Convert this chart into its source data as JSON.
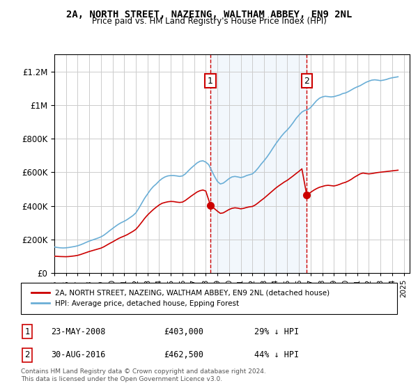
{
  "title": "2A, NORTH STREET, NAZEING, WALTHAM ABBEY, EN9 2NL",
  "subtitle": "Price paid vs. HM Land Registry's House Price Index (HPI)",
  "ylabel_ticks": [
    "£0",
    "£200K",
    "£400K",
    "£600K",
    "£800K",
    "£1M",
    "£1.2M"
  ],
  "ylim": [
    0,
    1300000
  ],
  "yticks": [
    0,
    200000,
    400000,
    600000,
    800000,
    1000000,
    1200000
  ],
  "xlim_start": 1995.0,
  "xlim_end": 2025.5,
  "background_color": "#ffffff",
  "plot_bg_color": "#ffffff",
  "grid_color": "#cccccc",
  "hpi_color": "#6aaed6",
  "price_color": "#cc0000",
  "point1_date": 2008.4,
  "point1_price": 403000,
  "point2_date": 2016.67,
  "point2_price": 462500,
  "annotation1_label": "1",
  "annotation2_label": "2",
  "legend_line1": "2A, NORTH STREET, NAZEING, WALTHAM ABBEY, EN9 2NL (detached house)",
  "legend_line2": "HPI: Average price, detached house, Epping Forest",
  "table_row1": [
    "1",
    "23-MAY-2008",
    "£403,000",
    "29% ↓ HPI"
  ],
  "table_row2": [
    "2",
    "30-AUG-2016",
    "£462,500",
    "44% ↓ HPI"
  ],
  "footnote": "Contains HM Land Registry data © Crown copyright and database right 2024.\nThis data is licensed under the Open Government Licence v3.0.",
  "hpi_data": {
    "years": [
      1995.0,
      1995.25,
      1995.5,
      1995.75,
      1996.0,
      1996.25,
      1996.5,
      1996.75,
      1997.0,
      1997.25,
      1997.5,
      1997.75,
      1998.0,
      1998.25,
      1998.5,
      1998.75,
      1999.0,
      1999.25,
      1999.5,
      1999.75,
      2000.0,
      2000.25,
      2000.5,
      2000.75,
      2001.0,
      2001.25,
      2001.5,
      2001.75,
      2002.0,
      2002.25,
      2002.5,
      2002.75,
      2003.0,
      2003.25,
      2003.5,
      2003.75,
      2004.0,
      2004.25,
      2004.5,
      2004.75,
      2005.0,
      2005.25,
      2005.5,
      2005.75,
      2006.0,
      2006.25,
      2006.5,
      2006.75,
      2007.0,
      2007.25,
      2007.5,
      2007.75,
      2008.0,
      2008.25,
      2008.5,
      2008.75,
      2009.0,
      2009.25,
      2009.5,
      2009.75,
      2010.0,
      2010.25,
      2010.5,
      2010.75,
      2011.0,
      2011.25,
      2011.5,
      2011.75,
      2012.0,
      2012.25,
      2012.5,
      2012.75,
      2013.0,
      2013.25,
      2013.5,
      2013.75,
      2014.0,
      2014.25,
      2014.5,
      2014.75,
      2015.0,
      2015.25,
      2015.5,
      2015.75,
      2016.0,
      2016.25,
      2016.5,
      2016.75,
      2017.0,
      2017.25,
      2017.5,
      2017.75,
      2018.0,
      2018.25,
      2018.5,
      2018.75,
      2019.0,
      2019.25,
      2019.5,
      2019.75,
      2020.0,
      2020.25,
      2020.5,
      2020.75,
      2021.0,
      2021.25,
      2021.5,
      2021.75,
      2022.0,
      2022.25,
      2022.5,
      2022.75,
      2023.0,
      2023.25,
      2023.5,
      2023.75,
      2024.0,
      2024.25,
      2024.5
    ],
    "values": [
      155000,
      152000,
      150000,
      149000,
      150000,
      152000,
      155000,
      158000,
      162000,
      168000,
      175000,
      183000,
      190000,
      196000,
      202000,
      208000,
      215000,
      225000,
      238000,
      252000,
      265000,
      278000,
      290000,
      300000,
      308000,
      318000,
      330000,
      342000,
      358000,
      385000,
      415000,
      445000,
      470000,
      495000,
      515000,
      530000,
      548000,
      562000,
      572000,
      578000,
      580000,
      580000,
      578000,
      575000,
      578000,
      590000,
      608000,
      625000,
      640000,
      655000,
      665000,
      668000,
      660000,
      645000,
      610000,
      575000,
      545000,
      530000,
      535000,
      548000,
      562000,
      572000,
      575000,
      572000,
      568000,
      572000,
      580000,
      585000,
      590000,
      605000,
      625000,
      648000,
      668000,
      690000,
      715000,
      742000,
      768000,
      792000,
      815000,
      835000,
      852000,
      872000,
      895000,
      920000,
      940000,
      958000,
      968000,
      972000,
      985000,
      1005000,
      1025000,
      1040000,
      1048000,
      1052000,
      1050000,
      1048000,
      1050000,
      1055000,
      1060000,
      1068000,
      1072000,
      1080000,
      1090000,
      1100000,
      1108000,
      1115000,
      1125000,
      1135000,
      1142000,
      1148000,
      1150000,
      1148000,
      1145000,
      1148000,
      1152000,
      1158000,
      1162000,
      1165000,
      1168000
    ]
  },
  "price_data": {
    "years": [
      1995.0,
      1995.25,
      1995.5,
      1995.75,
      1996.0,
      1996.25,
      1996.5,
      1996.75,
      1997.0,
      1997.25,
      1997.5,
      1997.75,
      1998.0,
      1998.25,
      1998.5,
      1998.75,
      1999.0,
      1999.25,
      1999.5,
      1999.75,
      2000.0,
      2000.25,
      2000.5,
      2000.75,
      2001.0,
      2001.25,
      2001.5,
      2001.75,
      2002.0,
      2002.25,
      2002.5,
      2002.75,
      2003.0,
      2003.25,
      2003.5,
      2003.75,
      2004.0,
      2004.25,
      2004.5,
      2004.75,
      2005.0,
      2005.25,
      2005.5,
      2005.75,
      2006.0,
      2006.25,
      2006.5,
      2006.75,
      2007.0,
      2007.25,
      2007.5,
      2007.75,
      2008.0,
      2008.4,
      2009.0,
      2009.25,
      2009.5,
      2009.75,
      2010.0,
      2010.25,
      2010.5,
      2010.75,
      2011.0,
      2011.25,
      2011.5,
      2011.75,
      2012.0,
      2012.25,
      2012.5,
      2012.75,
      2013.0,
      2013.25,
      2013.5,
      2013.75,
      2014.0,
      2014.25,
      2014.5,
      2014.75,
      2015.0,
      2015.25,
      2015.5,
      2015.75,
      2016.0,
      2016.25,
      2016.67,
      2017.0,
      2017.25,
      2017.5,
      2017.75,
      2018.0,
      2018.25,
      2018.5,
      2018.75,
      2019.0,
      2019.25,
      2019.5,
      2019.75,
      2020.0,
      2020.25,
      2020.5,
      2020.75,
      2021.0,
      2021.25,
      2021.5,
      2021.75,
      2022.0,
      2022.25,
      2022.5,
      2022.75,
      2023.0,
      2023.25,
      2023.5,
      2023.75,
      2024.0,
      2024.25,
      2024.5
    ],
    "values": [
      100000,
      99000,
      98000,
      97500,
      97000,
      98000,
      100000,
      102000,
      105000,
      110000,
      116000,
      122000,
      128000,
      133000,
      138000,
      143000,
      148000,
      156000,
      166000,
      176000,
      185000,
      195000,
      205000,
      213000,
      220000,
      228000,
      238000,
      248000,
      260000,
      280000,
      302000,
      325000,
      345000,
      362000,
      378000,
      392000,
      405000,
      415000,
      420000,
      424000,
      426000,
      425000,
      422000,
      420000,
      422000,
      432000,
      445000,
      458000,
      470000,
      482000,
      490000,
      494000,
      488000,
      403000,
      368000,
      355000,
      358000,
      368000,
      378000,
      385000,
      388000,
      386000,
      382000,
      385000,
      390000,
      394000,
      396000,
      405000,
      418000,
      432000,
      445000,
      460000,
      475000,
      490000,
      505000,
      518000,
      530000,
      542000,
      552000,
      565000,
      578000,
      592000,
      605000,
      620000,
      462500,
      480000,
      492000,
      502000,
      510000,
      515000,
      520000,
      522000,
      520000,
      518000,
      522000,
      528000,
      535000,
      540000,
      548000,
      558000,
      570000,
      580000,
      590000,
      595000,
      592000,
      590000,
      592000,
      595000,
      598000,
      600000,
      602000,
      604000,
      606000,
      608000,
      610000,
      612000
    ]
  },
  "shaded_region": [
    2008.4,
    2016.67
  ]
}
